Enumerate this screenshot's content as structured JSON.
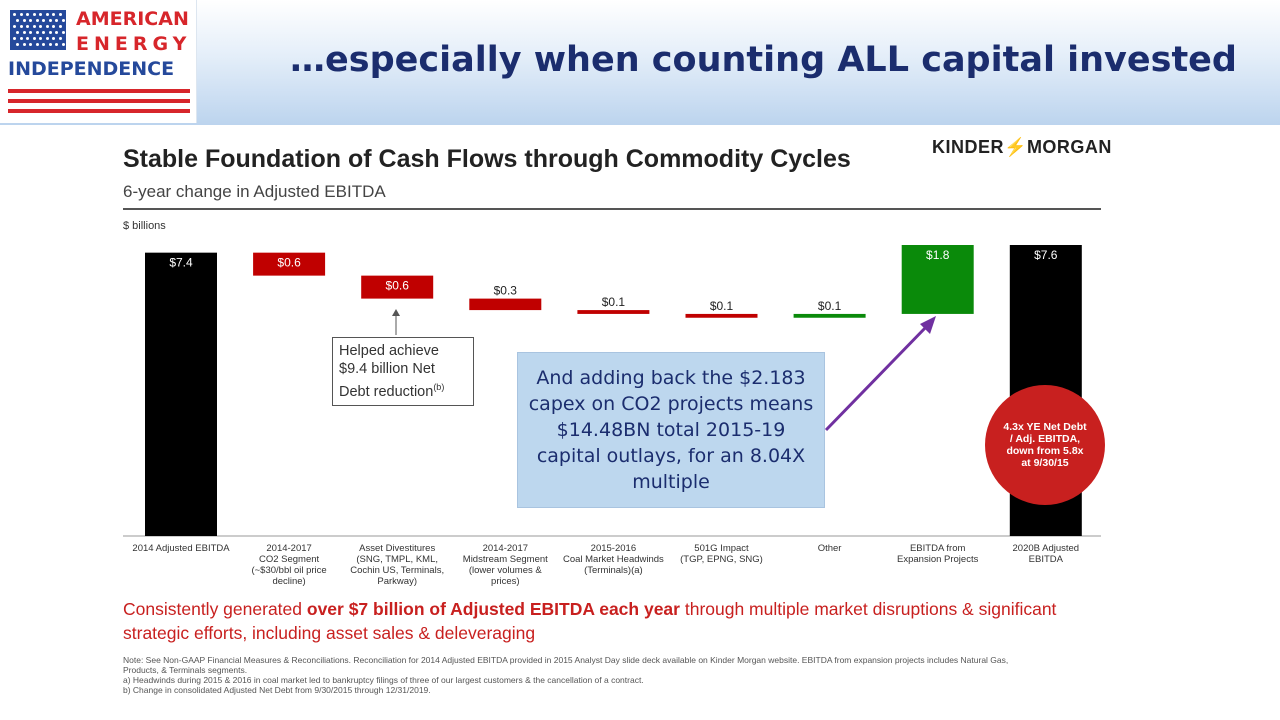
{
  "header": {
    "title": "…especially when counting ALL capital invested",
    "logo": {
      "line1": "AMERICAN",
      "line2": "ENERGY",
      "line3": "INDEPENDENCE"
    }
  },
  "slide": {
    "title": "Stable Foundation of Cash Flows through Commodity Cycles",
    "subtitle": "6-year change in Adjusted EBITDA",
    "company_logo_left": "KINDER",
    "company_logo_right": "MORGAN",
    "unit_label": "$ billions"
  },
  "chart_data": {
    "type": "bar",
    "subtype": "waterfall",
    "categories": [
      "2014 Adjusted EBITDA",
      "2014-2017 CO2 Segment (~$30/bbl oil price decline)",
      "Asset Divestitures (SNG, TMPL, KML, Cochin US, Terminals, Parkway)",
      "2014-2017 Midstream Segment (lower volumes & prices)",
      "2015-2016 Coal Market Headwinds (Terminals)(a)",
      "501G Impact (TGP, EPNG, SNG)",
      "Other",
      "EBITDA from Expansion Projects",
      "2020B Adjusted EBITDA"
    ],
    "category_lines": [
      [
        "2014 Adjusted EBITDA"
      ],
      [
        "2014-2017",
        "CO2 Segment",
        "(~$30/bbl oil price",
        "decline)"
      ],
      [
        "Asset Divestitures",
        "(SNG, TMPL, KML,",
        "Cochin US, Terminals,",
        "Parkway)"
      ],
      [
        "2014-2017",
        "Midstream Segment",
        "(lower volumes &",
        "prices)"
      ],
      [
        "2015-2016",
        "Coal Market Headwinds",
        "(Terminals)(a)"
      ],
      [
        "501G Impact",
        "(TGP, EPNG, SNG)"
      ],
      [
        "Other"
      ],
      [
        "EBITDA from",
        "Expansion Projects"
      ],
      [
        "2020B Adjusted",
        "EBITDA"
      ]
    ],
    "values": [
      7.4,
      -0.6,
      -0.6,
      -0.3,
      -0.1,
      -0.1,
      0.1,
      1.8,
      7.6
    ],
    "labels": [
      "$7.4",
      "$0.6",
      "$0.6",
      "$0.3",
      "$0.1",
      "$0.1",
      "$0.1",
      "$1.8",
      "$7.6"
    ],
    "kinds": [
      "total",
      "decrease",
      "decrease",
      "decrease",
      "decrease",
      "decrease",
      "increase",
      "increase",
      "total"
    ],
    "colors": {
      "total": "#000000",
      "decrease": "#c00000",
      "increase": "#0a8a0a",
      "overlay_bg": "#bdd7ee",
      "overlay_text": "#1b2d6e",
      "arrow": "#7030a0",
      "highlight_red": "#c8201f"
    }
  },
  "callout": {
    "line1": "Helped achieve",
    "line2": "$9.4 billion Net",
    "line3": "Debt reduction",
    "sup": "(b)"
  },
  "overlay_text": "And adding back the $2.183 capex on CO2 projects means $14.48BN total 2015-19 capital outlays, for an 8.04X multiple",
  "circle_text": "4.3x YE Net Debt / Adj. EBITDA, down from 5.8x at 9/30/15",
  "bottom": {
    "part1": "Consistently generated ",
    "part2": "over $7 billion of Adjusted EBITDA each year",
    "part3": " through multiple market disruptions & significant strategic efforts, including asset sales & deleveraging"
  },
  "notes": [
    "Note:  See Non-GAAP Financial Measures & Reconciliations. Reconciliation for 2014 Adjusted EBITDA provided in 2015 Analyst Day slide deck available on Kinder Morgan website. EBITDA from expansion projects includes Natural Gas, Products, & Terminals segments.",
    "a)   Headwinds during 2015 & 2016 in coal market led to bankruptcy filings of three of our largest customers & the cancellation of a contract.",
    "b)   Change in consolidated Adjusted Net Debt from 9/30/2015 through 12/31/2019."
  ]
}
